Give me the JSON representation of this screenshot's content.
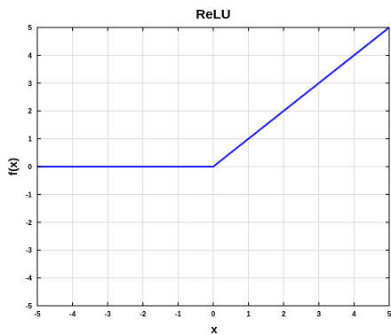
{
  "chart_data": {
    "type": "line",
    "title": "ReLU",
    "xlabel": "x",
    "ylabel": "f(x)",
    "xlim": [
      -5,
      5
    ],
    "ylim": [
      -5,
      5
    ],
    "xticks": [
      "-5",
      "-4",
      "-3",
      "-2",
      "-1",
      "0",
      "1",
      "2",
      "3",
      "4",
      "5"
    ],
    "yticks": [
      "-5",
      "-4",
      "-3",
      "-2",
      "-1",
      "0",
      "1",
      "2",
      "3",
      "4",
      "5"
    ],
    "grid": true,
    "series": [
      {
        "color": "#1a1aff",
        "x": [
          -5,
          0,
          5
        ],
        "y": [
          0,
          0,
          5
        ]
      }
    ]
  }
}
